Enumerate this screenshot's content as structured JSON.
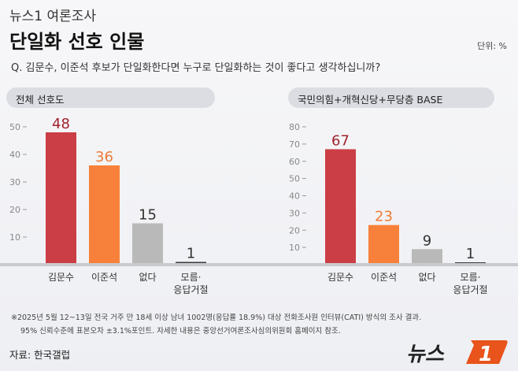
{
  "header": {
    "brand": "뉴스1 여론조사",
    "title": "단일화 선호 인물",
    "unit": "단위: %",
    "question": "Q. 김문수, 이준석 후보가 단일화한다면 누구로 단일화하는 것이 좋다고 생각하십니까?"
  },
  "chart_data": [
    {
      "type": "bar",
      "title": "전체 선호도",
      "categories": [
        "김문수",
        "이준석",
        "없다",
        "모름·\n응답거절"
      ],
      "values": [
        48,
        36,
        15,
        1
      ],
      "yticks": [
        10,
        20,
        30,
        40,
        50
      ],
      "ylim": [
        0,
        50
      ],
      "colors": [
        "#cc3e45",
        "#f7813a",
        "#b9b9b9",
        "#3a3a3a"
      ],
      "label_colors": [
        "#a0222c",
        "#f07a36",
        "#333333",
        "#333333"
      ]
    },
    {
      "type": "bar",
      "title": "국민의힘+개혁신당+무당층 BASE",
      "categories": [
        "김문수",
        "이준석",
        "없다",
        "모름·\n응답거절"
      ],
      "values": [
        67,
        23,
        9,
        1
      ],
      "yticks": [
        10,
        20,
        30,
        40,
        50,
        60,
        70,
        80
      ],
      "ylim": [
        0,
        80
      ],
      "colors": [
        "#cc3e45",
        "#f7813a",
        "#b9b9b9",
        "#3a3a3a"
      ],
      "label_colors": [
        "#a0222c",
        "#f07a36",
        "#333333",
        "#333333"
      ]
    }
  ],
  "footer": {
    "note1": "※2025년 5월 12~13일 전국 거주 만 18세 이상 남녀 1002명(응답률 18.9%) 대상 전화조사원 인터뷰(CATI) 방식의 조사 결과.",
    "note2": "95% 신뢰수준에 표본오차 ±3.1%포인트. 자세한 내용은 중앙선거여론조사심의위원회 홈페이지 참조.",
    "source": "자료: 한국갤럽",
    "logo": "뉴스1"
  }
}
